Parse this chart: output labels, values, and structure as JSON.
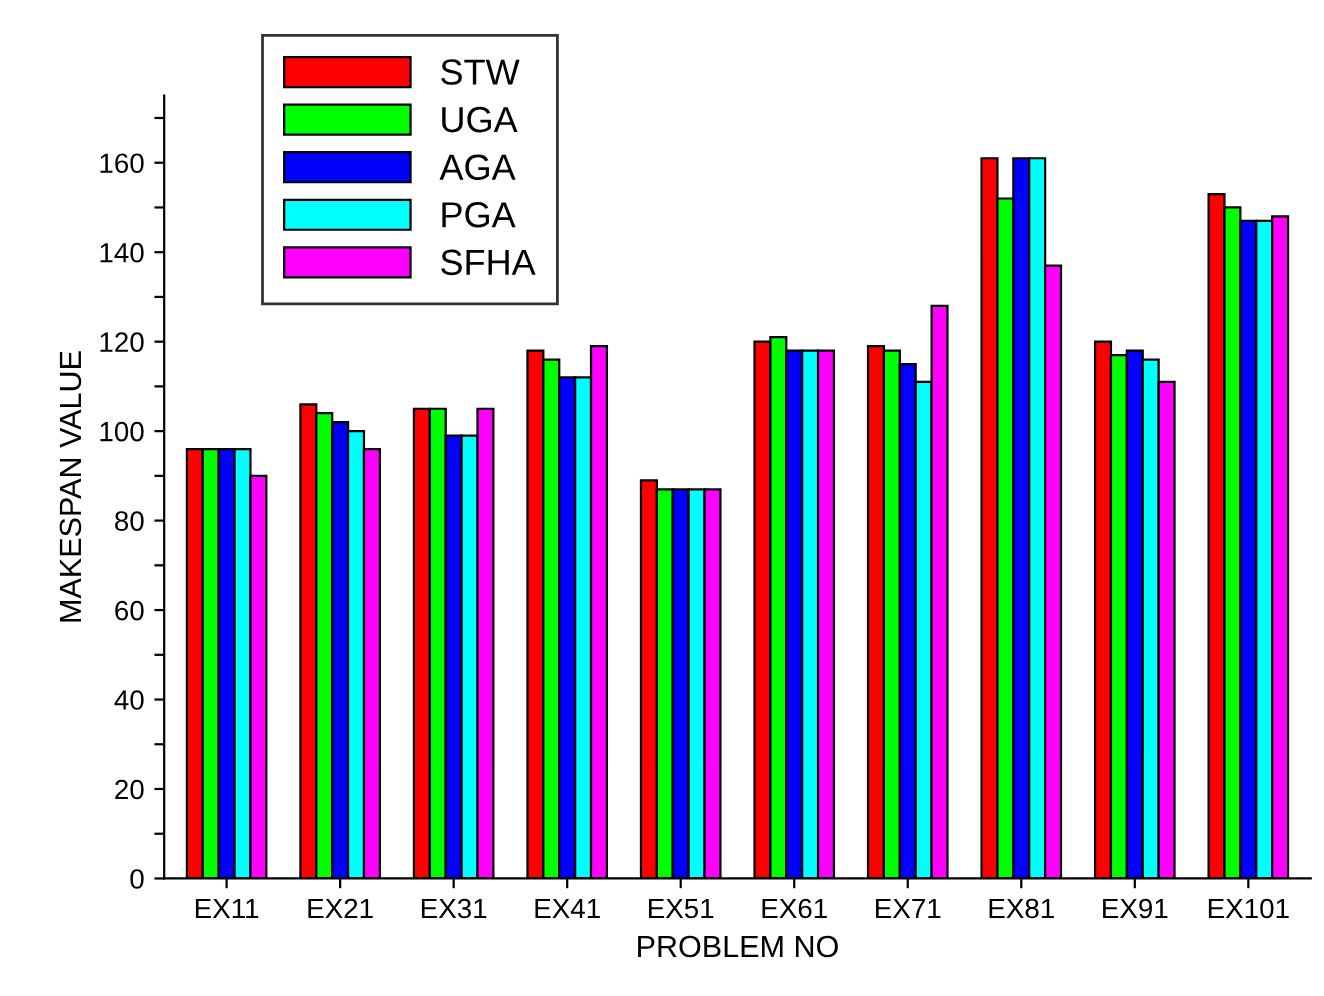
{
  "chart_data": {
    "type": "bar",
    "xlabel": "PROBLEM NO",
    "ylabel": "MAKESPAN VALUE",
    "categories": [
      "EX11",
      "EX21",
      "EX31",
      "EX41",
      "EX51",
      "EX61",
      "EX71",
      "EX81",
      "EX91",
      "EX101"
    ],
    "series": [
      {
        "name": "STW",
        "color": "#ff0000",
        "values": [
          96,
          106,
          105,
          118,
          89,
          120,
          119,
          161,
          120,
          153
        ]
      },
      {
        "name": "UGA",
        "color": "#00ff00",
        "values": [
          96,
          104,
          105,
          116,
          87,
          121,
          118,
          152,
          117,
          150
        ]
      },
      {
        "name": "AGA",
        "color": "#0000ff",
        "values": [
          96,
          102,
          99,
          112,
          87,
          118,
          115,
          161,
          118,
          147
        ]
      },
      {
        "name": "PGA",
        "color": "#00ffff",
        "values": [
          96,
          100,
          99,
          112,
          87,
          118,
          111,
          161,
          116,
          147
        ]
      },
      {
        "name": "SFHA",
        "color": "#ff00ff",
        "values": [
          90,
          96,
          105,
          119,
          87,
          118,
          128,
          137,
          111,
          148
        ]
      }
    ],
    "ylim": [
      0,
      175
    ],
    "yticks": [
      0,
      {
        "value": 10,
        "label": null
      },
      20,
      {
        "value": 30,
        "label": null
      },
      40,
      {
        "value": 50,
        "label": null
      },
      60,
      {
        "value": 70,
        "label": null
      },
      80,
      {
        "value": 90,
        "label": null
      },
      100,
      {
        "value": 110,
        "label": null
      },
      120,
      {
        "value": 130,
        "label": null
      },
      140,
      {
        "value": 150,
        "label": null
      },
      160,
      {
        "value": 170,
        "label": null
      }
    ],
    "grid": false,
    "legend": "top left"
  }
}
